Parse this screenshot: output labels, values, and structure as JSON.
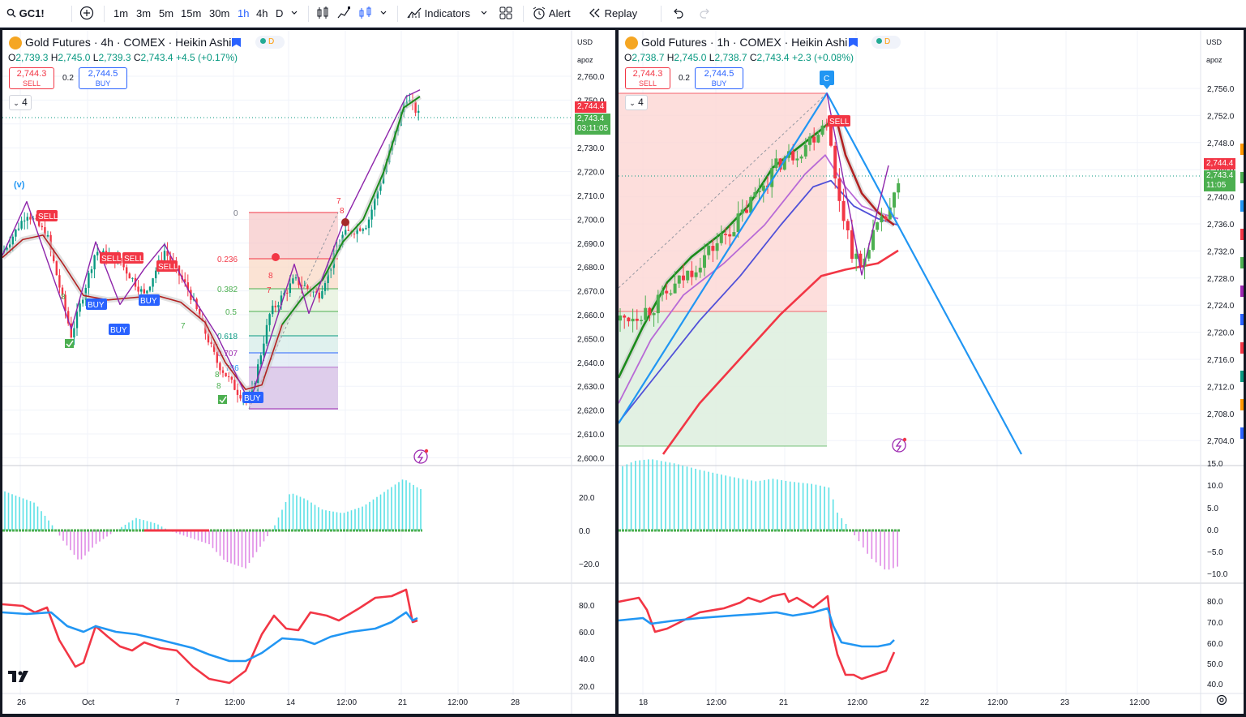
{
  "toolbar": {
    "symbol": "GC1!",
    "intervals": [
      "1m",
      "3m",
      "5m",
      "15m",
      "30m",
      "1h",
      "4h",
      "D"
    ],
    "active_interval": "1h",
    "indicators_label": "Indicators",
    "alert_label": "Alert",
    "replay_label": "Replay"
  },
  "left": {
    "title": "Gold Futures · 4h · COMEX · Heikin Ashi",
    "badge": "D",
    "ohlc": {
      "o": "2,739.3",
      "h": "2,745.0",
      "l": "2,739.3",
      "c": "2,743.4",
      "chg": "+4.5 (+0.17%)"
    },
    "sell_price": "2,744.3",
    "sell_label": "SELL",
    "spread": "0.2",
    "buy_price": "2,744.5",
    "buy_label": "BUY",
    "collapse_count": "4",
    "currency": "USD",
    "unit": "apoz",
    "price_ticks": [
      "2,760.0",
      "2,750.0",
      "2,740.0",
      "2,730.0",
      "2,720.0",
      "2,710.0",
      "2,700.0",
      "2,690.0",
      "2,680.0",
      "2,670.0",
      "2,660.0",
      "2,650.0",
      "2,640.0",
      "2,630.0",
      "2,620.0",
      "2,610.0",
      "2,600.0"
    ],
    "last_price_tag": "2,744.4",
    "close_tag": "2,743.4\n03:11:05",
    "macd_ticks": [
      "20.0",
      "0.0",
      "−20.0"
    ],
    "rsi_ticks": [
      "80.0",
      "60.0",
      "40.0",
      "20.0"
    ],
    "time_ticks": [
      "26",
      "Oct",
      "7",
      "12:00",
      "14",
      "12:00",
      "21",
      "12:00",
      "28"
    ],
    "fib_levels": [
      {
        "label": "0",
        "value": "2,702"
      },
      {
        "label": "0.236",
        "value": "2,682"
      },
      {
        "label": "0.382",
        "value": "2,670"
      },
      {
        "label": "0.5",
        "value": "2,661"
      },
      {
        "label": "0.618",
        "value": "2,651"
      },
      {
        "label": "0.707",
        "value": "2,644"
      },
      {
        "label": "786",
        "value": "2,637"
      }
    ],
    "signals": [
      {
        "text": "SELL",
        "kind": "sell"
      },
      {
        "text": "SELL",
        "kind": "sell"
      },
      {
        "text": "SELL",
        "kind": "sell"
      },
      {
        "text": "SELL",
        "kind": "sell"
      },
      {
        "text": "BUY",
        "kind": "buy"
      },
      {
        "text": "BUY",
        "kind": "buy"
      },
      {
        "text": "BUY",
        "kind": "buy"
      },
      {
        "text": "BUY",
        "kind": "buy"
      }
    ],
    "annotations": [
      "(v)",
      "7",
      "8",
      "8",
      "7",
      "8",
      "7",
      "8",
      "8"
    ]
  },
  "right": {
    "title": "Gold Futures · 1h · COMEX · Heikin Ashi",
    "badge": "D",
    "ohlc": {
      "o": "2,738.7",
      "h": "2,745.0",
      "l": "2,738.7",
      "c": "2,743.4",
      "chg": "+2.3 (+0.08%)"
    },
    "sell_price": "2,744.3",
    "sell_label": "SELL",
    "spread": "0.2",
    "buy_price": "2,744.5",
    "buy_label": "BUY",
    "collapse_count": "4",
    "currency": "USD",
    "unit": "apoz",
    "price_ticks": [
      "2,756.0",
      "2,752.0",
      "2,748.0",
      "2,744.0",
      "2,740.0",
      "2,736.0",
      "2,732.0",
      "2,728.0",
      "2,724.0",
      "2,720.0",
      "2,716.0",
      "2,712.0",
      "2,708.0",
      "2,704.0"
    ],
    "last_price_tag": "2,744.4",
    "close_tag": "2,743.4\n11:05",
    "macd_ticks": [
      "15.0",
      "10.0",
      "5.0",
      "0.0",
      "−5.0",
      "−10.0"
    ],
    "rsi_ticks": [
      "80.0",
      "70.0",
      "60.0",
      "50.0",
      "40.0"
    ],
    "time_ticks": [
      "18",
      "12:00",
      "21",
      "12:00",
      "22",
      "12:00",
      "23",
      "12:00"
    ],
    "point_label": "C",
    "signal": "SELL"
  },
  "colors": {
    "up": "#089981",
    "down": "#f23645",
    "accent": "#2962ff",
    "macd_pos": "#5ce1e6",
    "macd_neg": "#e08be6",
    "rsi_red": "#f23645",
    "rsi_blue": "#2196f3",
    "ema_green": "#1b8b1b",
    "ema_red": "#b22222",
    "purple": "#8e24aa",
    "sky": "#2196f3",
    "violet": "#5050d8"
  }
}
